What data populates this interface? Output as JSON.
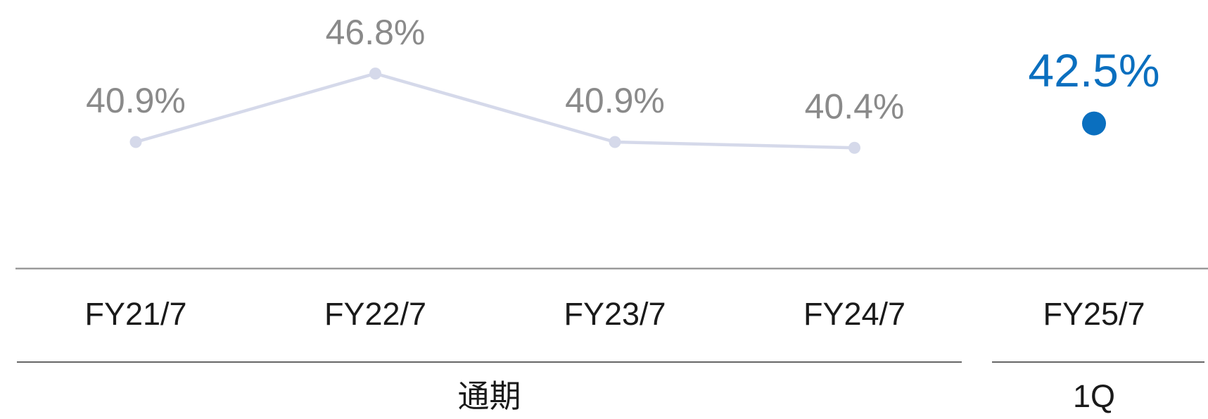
{
  "chart_data": {
    "type": "line",
    "categories": [
      "FY21/7",
      "FY22/7",
      "FY23/7",
      "FY24/7",
      "FY25/7"
    ],
    "group_labels": [
      "通期",
      "1Q"
    ],
    "series": [
      {
        "color": "#d5d9ea",
        "values": [
          40.9,
          46.8,
          40.9,
          40.4,
          null
        ],
        "value_labels": [
          "40.9%",
          "46.8%",
          "40.9%",
          "40.4%",
          null
        ]
      },
      {
        "color": "#0a6fbf",
        "values": [
          null,
          null,
          null,
          null,
          42.5
        ],
        "value_labels": [
          null,
          null,
          null,
          null,
          "42.5%"
        ]
      }
    ],
    "ylim": [
      30,
      49.5
    ]
  }
}
